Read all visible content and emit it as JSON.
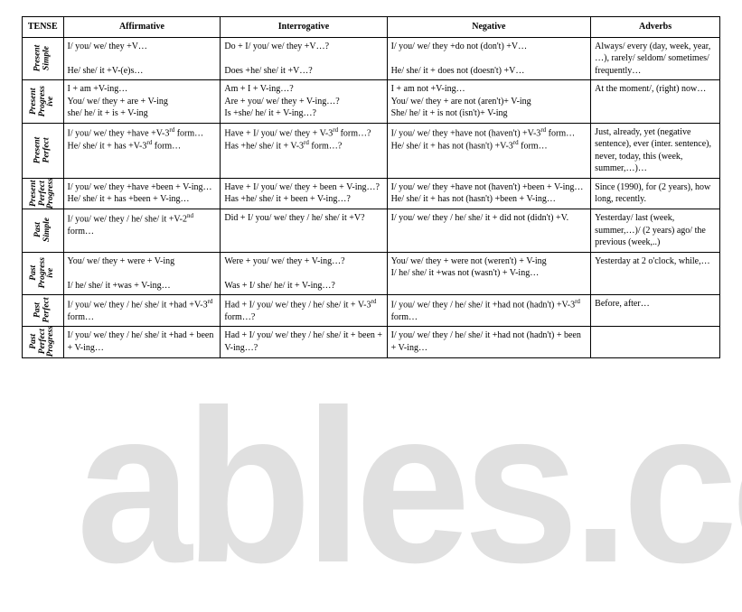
{
  "headers": {
    "c0": "TENSE",
    "c1": "Affirmative",
    "c2": "Interrogative",
    "c3": "Negative",
    "c4": "Adverbs"
  },
  "rows": [
    {
      "tense": "Present\nSimple",
      "aff": "I/ you/ we/ they +V…\n\nHe/ she/ it +V-(e)s…",
      "int": "Do + I/ you/ we/ they +V…?\n\nDoes +he/ she/ it +V…?",
      "neg": "I/ you/ we/ they +do not (don't) +V…\n\nHe/ she/ it + does not (doesn't) +V…",
      "adv": "Always/ every (day, week, year, …), rarely/ seldom/ sometimes/ frequently…"
    },
    {
      "tense": "Present\nProgress\nive",
      "aff": "I + am +V-ing…\nYou/ we/ they + are + V-ing\nshe/ he/ it + is + V-ing",
      "int": "Am + I + V-ing…?\nAre + you/ we/ they + V-ing…?\nIs +she/ he/ it + V-ing…?",
      "neg": "I + am  not +V-ing…\nYou/ we/ they + are not (aren't)+ V-ing\nShe/ he/ it + is not (isn't)+ V-ing",
      "adv": "At the moment/, (right) now…"
    },
    {
      "tense": "Present\nPerfect",
      "aff": "I/ you/ we/ they +have +V-3<sup>rd</sup> form…\nHe/ she/ it + has +V-3<sup>rd</sup> form…",
      "int": "Have + I/ you/ we/ they + V-3<sup>rd</sup> form…?\nHas +he/ she/ it + V-3<sup>rd</sup> form…?",
      "neg": "I/ you/ we/ they +have not (haven't) +V-3<sup>rd</sup> form…\nHe/ she/ it + has not (hasn't) +V-3<sup>rd</sup> form…",
      "adv": "Just, already, yet (negative sentence), ever (inter. sentence), never, today, this (week, summer,…)…"
    },
    {
      "tense": "Present\nPerfect\nProgress",
      "aff": "I/ you/ we/ they +have +been + V-ing…\nHe/ she/ it + has +been + V-ing…",
      "int": "Have + I/ you/ we/ they + been + V-ing…?\nHas +he/ she/ it + been + V-ing…?",
      "neg": "I/ you/ we/ they +have not (haven't) +been + V-ing…\nHe/ she/ it + has not (hasn't) +been + V-ing…",
      "adv": "Since (1990), for (2 years), how long, recently."
    },
    {
      "tense": "Past\nSimple",
      "aff": "I/ you/ we/ they / he/ she/ it +V-2<sup>nd</sup> form…",
      "int": "Did + I/ you/ we/ they / he/ she/ it +V?",
      "neg": "I/ you/ we/ they / he/ she/ it + did not (didn't) +V.",
      "adv": "Yesterday/ last (week, summer,…)/ (2 years) ago/ the previous (week,..)"
    },
    {
      "tense": "Past\nProgress\nive",
      "aff": "You/ we/ they + were + V-ing\n\nI/ he/ she/ it +was + V-ing…",
      "int": "Were + you/ we/ they + V-ing…?\n\nWas + I/ she/ he/ it + V-ing…?",
      "neg": "You/ we/ they + were not (weren't) + V-ing\nI/ he/ she/ it +was not (wasn't) + V-ing…",
      "adv": "Yesterday at 2 o'clock, while,…"
    },
    {
      "tense": "Past\nPerfect",
      "aff": "I/ you/ we/ they / he/ she/ it +had +V-3<sup>rd</sup> form…",
      "int": "Had + I/ you/ we/ they / he/ she/ it + V-3<sup>rd</sup> form…?",
      "neg": "I/ you/ we/ they / he/ she/ it +had not (hadn't) +V-3<sup>rd</sup> form…",
      "adv": "Before, after…"
    },
    {
      "tense": "Past\nPerfect\nProgress",
      "aff": "I/ you/ we/ they / he/ she/ it +had + been + V-ing…",
      "int": "Had + I/ you/ we/ they / he/ she/ it + been + V-ing…?",
      "neg": "I/ you/ we/ they / he/ she/ it +had not (hadn't) + been + V-ing…",
      "adv": ""
    }
  ],
  "watermark": "ables.co"
}
